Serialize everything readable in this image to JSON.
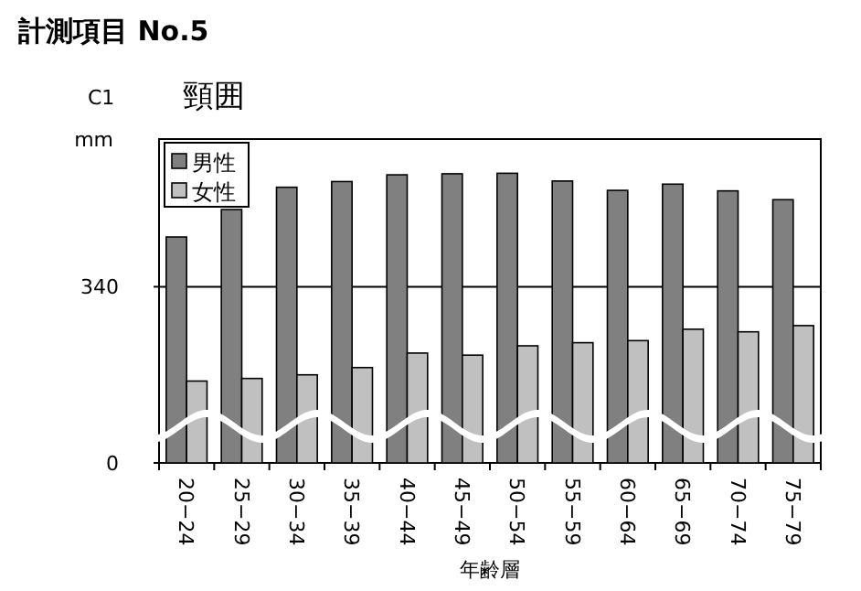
{
  "chart_data": {
    "type": "bar",
    "title": "計測項目 No.5",
    "subtitle": "頸囲",
    "annotations": [
      "C1"
    ],
    "ylabel": "mm",
    "xlabel": "年齢層",
    "categories": [
      "20−24",
      "25−29",
      "30−34",
      "35−39",
      "40−44",
      "45−49",
      "50−54",
      "55−59",
      "60−64",
      "65−69",
      "70−74",
      "75−79"
    ],
    "series": [
      {
        "name": "男性",
        "color": "#808080",
        "values": [
          436,
          489,
          532,
          543,
          556,
          558,
          559,
          544,
          526,
          538,
          525,
          508
        ]
      },
      {
        "name": "女性",
        "color": "#c0c0c0",
        "values": [
          158,
          163,
          170,
          184,
          212,
          208,
          226,
          232,
          236,
          258,
          253,
          265
        ]
      }
    ],
    "ylim": [
      0,
      625
    ],
    "yticks": [
      0,
      340
    ],
    "grid": "y",
    "legend": "top left"
  }
}
